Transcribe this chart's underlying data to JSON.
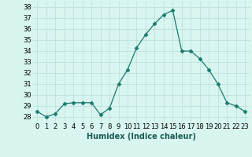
{
  "x": [
    0,
    1,
    2,
    3,
    4,
    5,
    6,
    7,
    8,
    9,
    10,
    11,
    12,
    13,
    14,
    15,
    16,
    17,
    18,
    19,
    20,
    21,
    22,
    23
  ],
  "y": [
    28.5,
    28.0,
    28.3,
    29.2,
    29.3,
    29.3,
    29.3,
    28.2,
    28.8,
    31.0,
    32.3,
    34.3,
    35.5,
    36.5,
    37.3,
    37.7,
    34.0,
    34.0,
    33.3,
    32.3,
    31.0,
    29.3,
    29.0,
    28.5
  ],
  "line_color": "#1a7a6e",
  "marker": "D",
  "markersize": 2.5,
  "bg_color": "#d8f5f0",
  "grid_color": "#b8ddd8",
  "xlabel": "Humidex (Indice chaleur)",
  "xlim": [
    -0.5,
    23.5
  ],
  "ylim": [
    27.5,
    38.5
  ],
  "yticks": [
    28,
    29,
    30,
    31,
    32,
    33,
    34,
    35,
    36,
    37,
    38
  ],
  "xtick_labels": [
    "0",
    "1",
    "2",
    "3",
    "4",
    "5",
    "6",
    "7",
    "8",
    "9",
    "10",
    "11",
    "12",
    "13",
    "14",
    "15",
    "16",
    "17",
    "18",
    "19",
    "20",
    "21",
    "22",
    "23"
  ],
  "xlabel_fontsize": 7,
  "tick_fontsize": 6
}
